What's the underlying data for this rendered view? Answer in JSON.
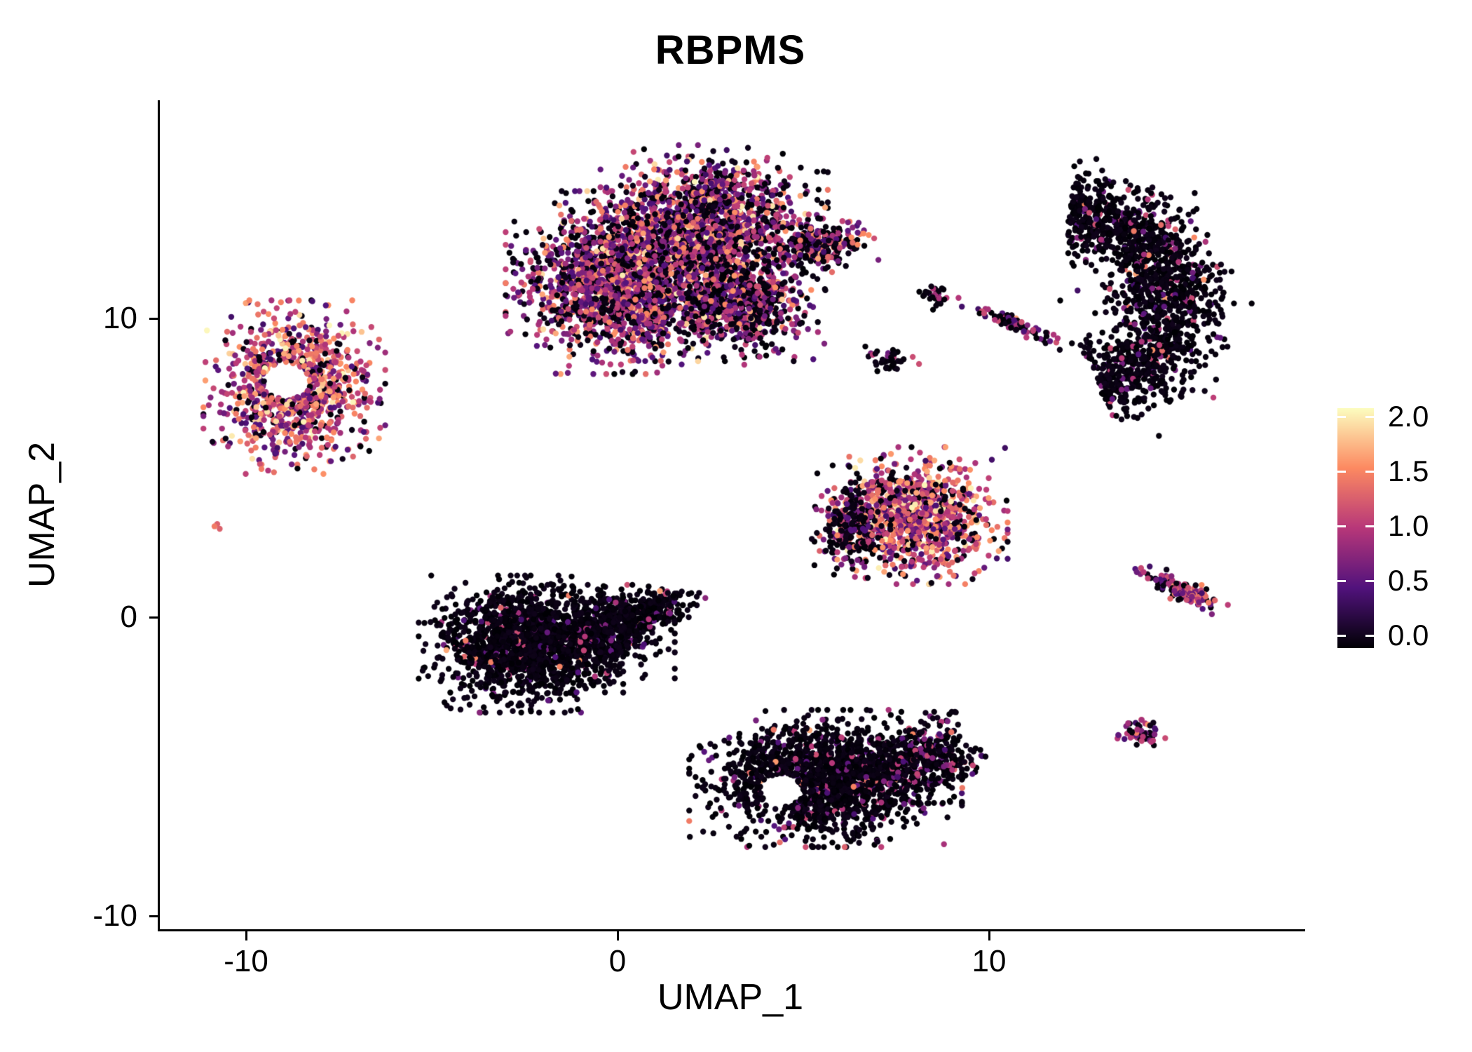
{
  "chart_data": {
    "type": "scatter",
    "title": "RBPMS",
    "xlabel": "UMAP_1",
    "ylabel": "UMAP_2",
    "xlim": [
      -12.3,
      18.4
    ],
    "ylim": [
      -10.45,
      17.35
    ],
    "grid": false,
    "background": "#ffffff",
    "axis_color": "#000000",
    "point_radius_px": 4.2,
    "xticks": [
      {
        "label": "-10",
        "value": -10
      },
      {
        "label": "0",
        "value": 0
      },
      {
        "label": "10",
        "value": 10
      }
    ],
    "yticks": [
      {
        "label": "-10",
        "value": -10
      },
      {
        "label": "0",
        "value": 0
      },
      {
        "label": "10",
        "value": 10
      }
    ],
    "legend": {
      "position": "right",
      "value_range": [
        0,
        2.07
      ],
      "ticks": [
        {
          "label": "2.0",
          "value": 2.0
        },
        {
          "label": "1.5",
          "value": 1.5
        },
        {
          "label": "1.0",
          "value": 1.0
        },
        {
          "label": "0.5",
          "value": 0.5
        },
        {
          "label": "0.0",
          "value": 0.0
        }
      ]
    },
    "palette": {
      "name": "magma",
      "stops": [
        {
          "t": 0.0,
          "color": "#000004"
        },
        {
          "t": 0.25,
          "color": "#51127c"
        },
        {
          "t": 0.5,
          "color": "#b73779"
        },
        {
          "t": 0.75,
          "color": "#fc8961"
        },
        {
          "t": 1.0,
          "color": "#fcfdbf"
        }
      ]
    },
    "expression_buckets": [
      [
        0,
        0.1
      ],
      [
        0.4,
        0.8
      ],
      [
        0.9,
        1.2
      ],
      [
        1.3,
        1.7
      ],
      [
        1.8,
        2.05
      ]
    ],
    "clusters": [
      {
        "name": "top-main-a",
        "type": "blob",
        "cx": 0.2,
        "cy": 11.2,
        "rx": 2.1,
        "ry": 2.0,
        "n": 2000,
        "weights": [
          0.34,
          0.27,
          0.22,
          0.14,
          0.03
        ],
        "seed": 11
      },
      {
        "name": "top-main-b",
        "type": "blob",
        "cx": 2.6,
        "cy": 13.2,
        "rx": 2.0,
        "ry": 1.7,
        "n": 1500,
        "weights": [
          0.36,
          0.28,
          0.2,
          0.13,
          0.03
        ],
        "seed": 12
      },
      {
        "name": "top-main-c",
        "type": "blob",
        "cx": 3.3,
        "cy": 10.4,
        "rx": 1.5,
        "ry": 1.2,
        "n": 700,
        "weights": [
          0.45,
          0.25,
          0.18,
          0.1,
          0.02
        ],
        "seed": 13
      },
      {
        "name": "top-arm",
        "type": "blob",
        "cx": 5.4,
        "cy": 12.4,
        "rx": 1.0,
        "ry": 0.6,
        "rot": 15,
        "n": 280,
        "weights": [
          0.55,
          0.2,
          0.15,
          0.1,
          0
        ],
        "seed": 14
      },
      {
        "name": "left-ring",
        "type": "blob",
        "cx": -8.7,
        "cy": 7.7,
        "rx": 1.6,
        "ry": 1.9,
        "n": 950,
        "hole": {
          "cx": -8.9,
          "cy": 7.9,
          "r": 0.6
        },
        "weights": [
          0.16,
          0.2,
          0.28,
          0.29,
          0.07
        ],
        "seed": 15
      },
      {
        "name": "tiny-left-dot",
        "type": "blob",
        "cx": -10.75,
        "cy": 3.0,
        "rx": 0.12,
        "ry": 0.12,
        "n": 3,
        "weights": [
          0,
          0,
          0.3,
          0.4,
          0.3
        ],
        "seed": 16
      },
      {
        "name": "mid-black-a",
        "type": "blob",
        "cx": -2.6,
        "cy": -0.9,
        "rx": 1.8,
        "ry": 1.5,
        "n": 1500,
        "weights": [
          0.94,
          0.03,
          0.02,
          0.01,
          0
        ],
        "seed": 17
      },
      {
        "name": "mid-black-b",
        "type": "blob",
        "cx": -0.6,
        "cy": -0.6,
        "rx": 1.4,
        "ry": 1.1,
        "n": 650,
        "weights": [
          0.93,
          0.04,
          0.02,
          0.01,
          0
        ],
        "seed": 18
      },
      {
        "name": "mid-black-tail",
        "type": "blob",
        "cx": 0.9,
        "cy": 0.2,
        "rx": 1.0,
        "ry": 0.5,
        "rot": 20,
        "n": 260,
        "weights": [
          0.92,
          0.04,
          0.03,
          0.01,
          0
        ],
        "seed": 19
      },
      {
        "name": "right-colorful",
        "type": "blob",
        "cx": 7.9,
        "cy": 3.4,
        "rx": 1.7,
        "ry": 1.5,
        "n": 1050,
        "weights": [
          0.18,
          0.18,
          0.28,
          0.29,
          0.07
        ],
        "seed": 20
      },
      {
        "name": "right-colorful-edge",
        "type": "blob",
        "cx": 6.3,
        "cy": 3.0,
        "rx": 0.7,
        "ry": 1.1,
        "n": 220,
        "weights": [
          0.6,
          0.2,
          0.12,
          0.08,
          0
        ],
        "seed": 21
      },
      {
        "name": "bottom-black-main",
        "type": "blob",
        "cx": 5.6,
        "cy": -5.4,
        "rx": 2.4,
        "ry": 1.5,
        "n": 1700,
        "hole": {
          "cx": 4.4,
          "cy": -5.8,
          "r": 0.55
        },
        "weights": [
          0.88,
          0.06,
          0.045,
          0.015,
          0
        ],
        "seed": 22
      },
      {
        "name": "bottom-black-right",
        "type": "blob",
        "cx": 8.3,
        "cy": -4.7,
        "rx": 1.05,
        "ry": 1.0,
        "n": 350,
        "weights": [
          0.78,
          0.12,
          0.08,
          0.02,
          0
        ],
        "seed": 23
      },
      {
        "name": "right-crescent",
        "type": "arc",
        "cx": 11.9,
        "cy": 10.6,
        "radius": 3.1,
        "a0": -70,
        "a1": 85,
        "thickness": 1.5,
        "n": 1600,
        "weights": [
          0.9,
          0.05,
          0.04,
          0.01,
          0
        ],
        "seed": 24
      },
      {
        "name": "small-top-a",
        "type": "blob",
        "cx": 8.45,
        "cy": 10.75,
        "rx": 0.3,
        "ry": 0.3,
        "n": 35,
        "weights": [
          0.7,
          0.12,
          0.18,
          0,
          0
        ],
        "seed": 25
      },
      {
        "name": "small-top-b",
        "type": "blob",
        "cx": 7.3,
        "cy": 8.6,
        "rx": 0.55,
        "ry": 0.35,
        "n": 40,
        "weights": [
          0.8,
          0.08,
          0.12,
          0,
          0
        ],
        "seed": 26
      },
      {
        "name": "top-streak",
        "type": "blob",
        "cx": 10.7,
        "cy": 9.8,
        "rx": 1.15,
        "ry": 0.17,
        "rot": -27,
        "n": 90,
        "weights": [
          0.55,
          0.2,
          0.2,
          0.05,
          0
        ],
        "seed": 27
      },
      {
        "name": "right-streak",
        "type": "blob",
        "cx": 15.2,
        "cy": 0.9,
        "rx": 0.95,
        "ry": 0.27,
        "rot": -28,
        "n": 130,
        "weights": [
          0.28,
          0.26,
          0.3,
          0.16,
          0
        ],
        "seed": 28
      },
      {
        "name": "bottom-right-small",
        "type": "blob",
        "cx": 14.1,
        "cy": -3.9,
        "rx": 0.42,
        "ry": 0.38,
        "n": 55,
        "weights": [
          0.5,
          0.22,
          0.2,
          0.08,
          0
        ],
        "seed": 29
      }
    ]
  }
}
